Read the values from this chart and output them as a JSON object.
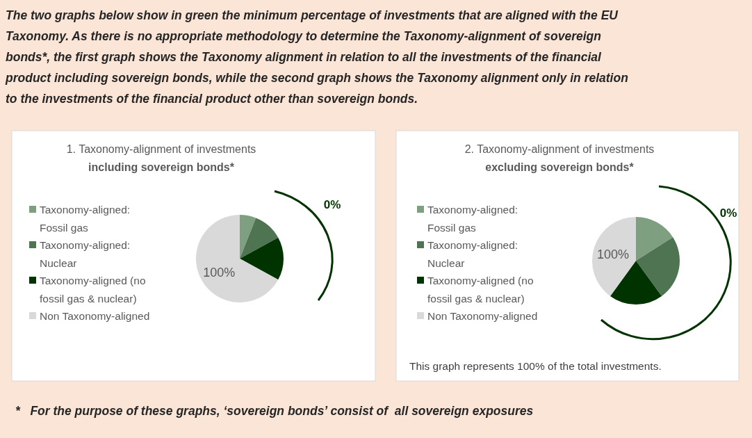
{
  "chart_data": [
    {
      "type": "other",
      "title": "The two graphs below show in green the minimum percentage of investments that are aligned with the EU Taxonomy. As there is no appropriate methodology to determine the Taxonomy-alignment of sovereign bonds*, the first graph shows the Taxonomy alignment in relation to all the investments of the financial product including sovereign bonds, while the second graph shows the Taxonomy alignment only in relation to the investments of the financial product other than sovereign bonds.",
      "annotations": [
        "*   For the purpose of these graphs, ‘sovereign bonds’ consist of  all sovereign exposures"
      ]
    },
    {
      "type": "pie",
      "title": "1. Taxonomy-alignment of investments",
      "subtitle": "including sovereign bonds*",
      "categories": [
        "Taxonomy-aligned: Fossil gas",
        "Taxonomy-aligned: Nuclear",
        "Taxonomy-aligned (no fossil gas & nuclear)",
        "Non Taxonomy-aligned"
      ],
      "values": [
        6,
        11,
        16,
        67
      ],
      "colors": [
        "#7f9f81",
        "#4e7451",
        "#003300",
        "#d9d9d9"
      ],
      "legend": "left",
      "annotations": [
        {
          "text": "100%",
          "x": "Non Taxonomy-aligned"
        },
        "0%"
      ]
    },
    {
      "type": "pie",
      "title": "2. Taxonomy-alignment of investments",
      "subtitle": "excluding sovereign bonds*",
      "categories": [
        "Taxonomy-aligned: Fossil gas",
        "Taxonomy-aligned: Nuclear",
        "Taxonomy-aligned (no fossil gas & nuclear)",
        "Non Taxonomy-aligned"
      ],
      "values": [
        16,
        24,
        20,
        40
      ],
      "colors": [
        "#7f9f81",
        "#4e7451",
        "#003300",
        "#d9d9d9"
      ],
      "legend": "left",
      "annotations": [
        {
          "text": "100%",
          "x": "Non Taxonomy-aligned"
        },
        "0%",
        "This graph represents 100% of the total investments."
      ]
    }
  ]
}
